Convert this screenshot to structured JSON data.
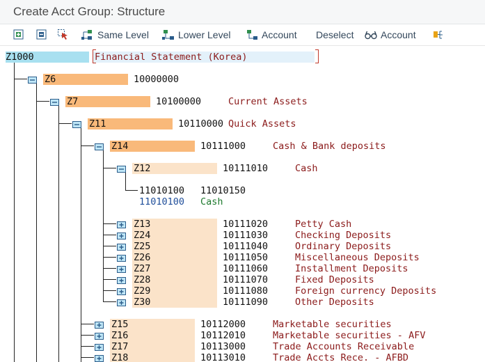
{
  "window": {
    "title": "Create Acct Group: Structure"
  },
  "toolbar": {
    "same_level": "Same Level",
    "lower_level": "Lower Level",
    "account": "Account",
    "deselect": "Deselect",
    "display_account": "Account"
  },
  "tree": {
    "root": {
      "code": "Z1000",
      "text": "Financial Statement (Korea)"
    },
    "z6": {
      "code": "Z6",
      "num": "10000000",
      "text": ""
    },
    "z7": {
      "code": "Z7",
      "num": "10100000",
      "text": "Current Assets"
    },
    "z11": {
      "code": "Z11",
      "num": "10110000",
      "text": "Quick Assets"
    },
    "z14": {
      "code": "Z14",
      "num": "10111000",
      "text": "Cash & Bank deposits"
    },
    "z12": {
      "code": "Z12",
      "num": "10111010",
      "text": "Cash"
    },
    "account_range": {
      "from": "11010100",
      "to": "11010150"
    },
    "account": {
      "num": "11010100",
      "text": "Cash"
    },
    "siblings": [
      {
        "code": "Z13",
        "num": "10111020",
        "text": "Petty Cash"
      },
      {
        "code": "Z24",
        "num": "10111030",
        "text": "Checking Deposits"
      },
      {
        "code": "Z25",
        "num": "10111040",
        "text": "Ordinary Deposits"
      },
      {
        "code": "Z26",
        "num": "10111050",
        "text": "Miscellaneous Deposits"
      },
      {
        "code": "Z27",
        "num": "10111060",
        "text": "Installment Deposits"
      },
      {
        "code": "Z28",
        "num": "10111070",
        "text": "Fixed Deposits"
      },
      {
        "code": "Z29",
        "num": "10111080",
        "text": "Foreign currency Deposits"
      },
      {
        "code": "Z30",
        "num": "10111090",
        "text": "Other Deposits"
      }
    ],
    "level4": [
      {
        "code": "Z15",
        "num": "10112000",
        "text": "Marketable securities"
      },
      {
        "code": "Z16",
        "num": "10112010",
        "text": "Marketable securities - AFV"
      },
      {
        "code": "Z17",
        "num": "10113000",
        "text": "Trade Accounts Receivable"
      },
      {
        "code": "Z18",
        "num": "10113010",
        "text": "Trade Accts Rece. - AFBD"
      }
    ]
  }
}
